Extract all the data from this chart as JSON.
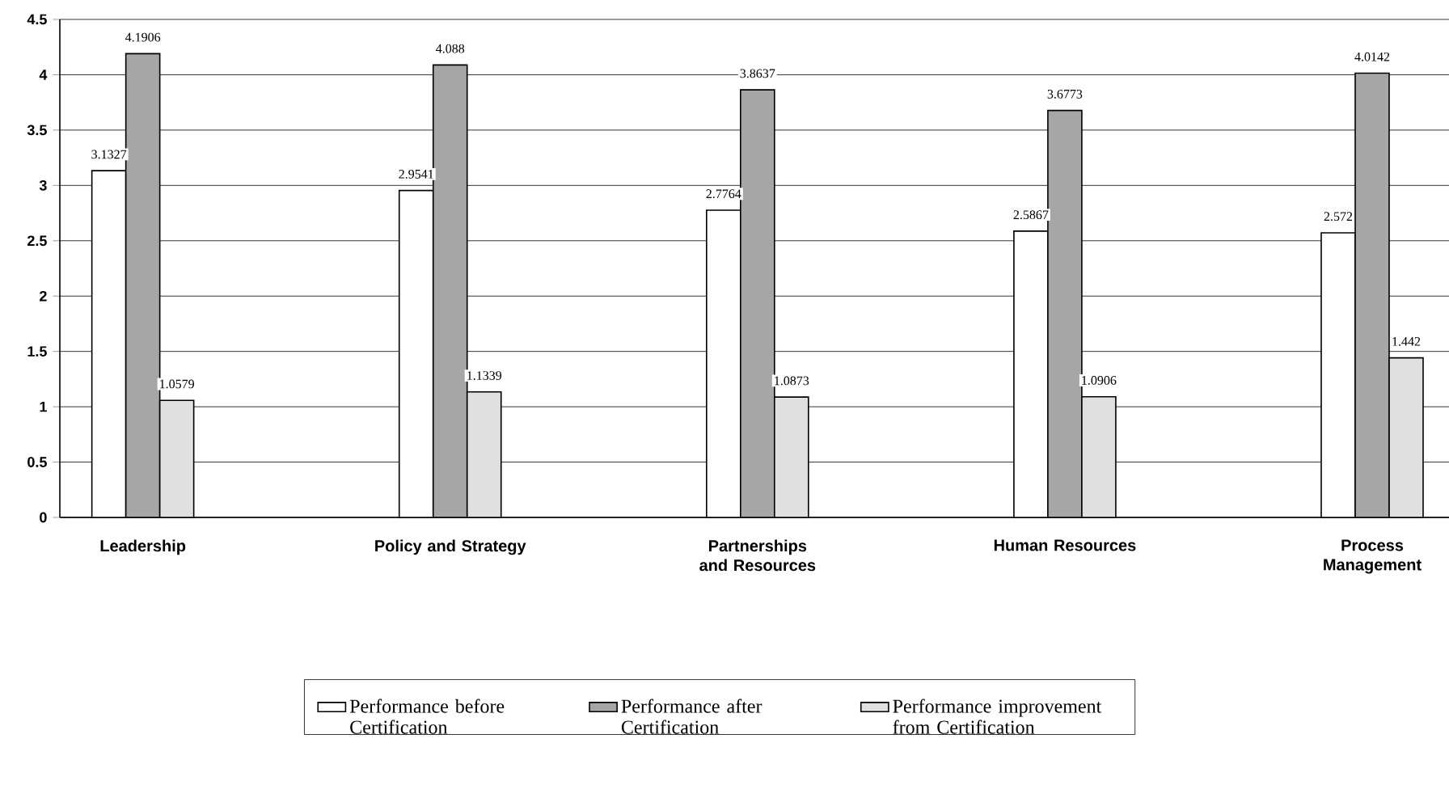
{
  "chart_data": {
    "type": "bar",
    "categories": [
      "Leadership",
      "Policy and Strategy",
      "Partnerships and Resources",
      "Human Resources",
      "Process Management"
    ],
    "series": [
      {
        "name": "Performance before Certification",
        "color": "#ffffff",
        "values": [
          3.1327,
          2.9541,
          2.7764,
          2.5867,
          2.572
        ]
      },
      {
        "name": "Performance after Certification",
        "color": "#a6a6a6",
        "values": [
          4.1906,
          4.088,
          3.8637,
          3.6773,
          4.0142
        ]
      },
      {
        "name": "Performance improvement from Certification",
        "color": "#e0e0e0",
        "values": [
          1.0579,
          1.1339,
          1.0873,
          1.0906,
          1.442
        ]
      }
    ],
    "ylim": [
      0,
      4.5
    ],
    "yticks": [
      0,
      0.5,
      1,
      1.5,
      2,
      2.5,
      3,
      3.5,
      4,
      4.5
    ],
    "grid": "y",
    "legend": "bottom",
    "data_labels": true
  }
}
